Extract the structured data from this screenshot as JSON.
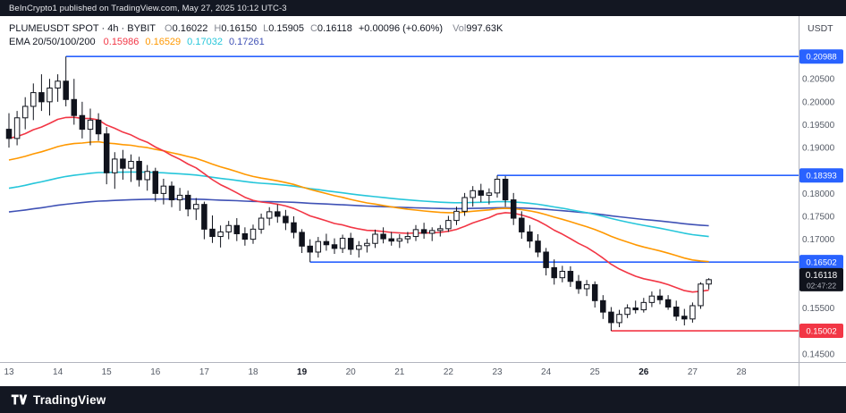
{
  "topbar": {
    "text": "BeInCrypto1 published on TradingView.com, May 27, 2025 10:12 UTC-3"
  },
  "header": {
    "title": "PLUMEUSDT SPOT · 4h · BYBIT",
    "ohlc": [
      {
        "label": "O",
        "value": "0.16022"
      },
      {
        "label": "H",
        "value": "0.16150"
      },
      {
        "label": "L",
        "value": "0.15905"
      },
      {
        "label": "C",
        "value": "0.16118"
      }
    ],
    "change": "+0.00096 (+0.60%)",
    "volume_label": "Vol",
    "volume_value": "997.63K",
    "ema_title": "EMA 20/50/100/200",
    "ema_values": [
      {
        "value": "0.15986",
        "color": "#f23645"
      },
      {
        "value": "0.16529",
        "color": "#ff9800"
      },
      {
        "value": "0.17032",
        "color": "#26c6da"
      },
      {
        "value": "0.17261",
        "color": "#3f51b5"
      }
    ]
  },
  "price_axis": {
    "currency": "USDT"
  },
  "footer": {
    "brand": "TradingView"
  },
  "chart_data": {
    "type": "candlestick",
    "symbol": "PLUMEUSDT",
    "market": "SPOT",
    "interval": "4h",
    "exchange": "BYBIT",
    "y_range": [
      0.1432,
      0.2187
    ],
    "ticks": [
      0.205,
      0.2,
      0.195,
      0.19,
      0.18,
      0.175,
      0.17,
      0.155,
      0.145
    ],
    "levels": [
      {
        "price": 0.20988,
        "from_index": 7,
        "color": "#2962ff"
      },
      {
        "price": 0.18393,
        "from_index": 60,
        "color": "#2962ff"
      },
      {
        "price": 0.16502,
        "from_index": 37,
        "color": "#2962ff"
      },
      {
        "price": 0.15002,
        "from_index": 74,
        "color": "#f23645"
      }
    ],
    "current_price": 0.16118,
    "countdown": "02:47:22",
    "emas": [
      {
        "period": 20,
        "color": "#f23645",
        "seed": 0.192
      },
      {
        "period": 50,
        "color": "#ff9800",
        "seed": 0.1871
      },
      {
        "period": 100,
        "color": "#26c6da",
        "seed": 0.1809
      },
      {
        "period": 200,
        "color": "#3f51b5",
        "seed": 0.1758
      }
    ],
    "time_labels": [
      {
        "label": "13",
        "index": 0,
        "bold": false
      },
      {
        "label": "14",
        "index": 6,
        "bold": false
      },
      {
        "label": "15",
        "index": 12,
        "bold": false
      },
      {
        "label": "16",
        "index": 18,
        "bold": false
      },
      {
        "label": "17",
        "index": 24,
        "bold": false
      },
      {
        "label": "18",
        "index": 30,
        "bold": false
      },
      {
        "label": "19",
        "index": 36,
        "bold": true
      },
      {
        "label": "20",
        "index": 42,
        "bold": false
      },
      {
        "label": "21",
        "index": 48,
        "bold": false
      },
      {
        "label": "22",
        "index": 54,
        "bold": false
      },
      {
        "label": "23",
        "index": 60,
        "bold": false
      },
      {
        "label": "24",
        "index": 66,
        "bold": false
      },
      {
        "label": "25",
        "index": 72,
        "bold": false
      },
      {
        "label": "26",
        "index": 78,
        "bold": true
      },
      {
        "label": "27",
        "index": 84,
        "bold": false
      },
      {
        "label": "28",
        "index": 90,
        "bold": false
      }
    ],
    "candles": [
      [
        0.194,
        0.1975,
        0.19,
        0.192
      ],
      [
        0.192,
        0.198,
        0.1905,
        0.1965
      ],
      [
        0.1965,
        0.201,
        0.194,
        0.199
      ],
      [
        0.199,
        0.204,
        0.196,
        0.202
      ],
      [
        0.202,
        0.206,
        0.198,
        0.2
      ],
      [
        0.2,
        0.205,
        0.197,
        0.203
      ],
      [
        0.203,
        0.206,
        0.2,
        0.2045
      ],
      [
        0.2045,
        0.20988,
        0.199,
        0.2005
      ],
      [
        0.2005,
        0.205,
        0.195,
        0.197
      ],
      [
        0.197,
        0.2,
        0.192,
        0.194
      ],
      [
        0.194,
        0.1985,
        0.1905,
        0.196
      ],
      [
        0.196,
        0.1975,
        0.1915,
        0.193
      ],
      [
        0.193,
        0.1945,
        0.182,
        0.1845
      ],
      [
        0.1845,
        0.189,
        0.181,
        0.1875
      ],
      [
        0.1875,
        0.1895,
        0.183,
        0.1855
      ],
      [
        0.1855,
        0.1885,
        0.1825,
        0.187
      ],
      [
        0.187,
        0.188,
        0.1815,
        0.183
      ],
      [
        0.183,
        0.1862,
        0.1806,
        0.1848
      ],
      [
        0.1848,
        0.1856,
        0.1782,
        0.18
      ],
      [
        0.18,
        0.1832,
        0.1776,
        0.1816
      ],
      [
        0.1816,
        0.1826,
        0.177,
        0.1786
      ],
      [
        0.1786,
        0.1812,
        0.1762,
        0.1796
      ],
      [
        0.1796,
        0.1806,
        0.175,
        0.1766
      ],
      [
        0.1766,
        0.179,
        0.1742,
        0.1776
      ],
      [
        0.1776,
        0.1782,
        0.17,
        0.1722
      ],
      [
        0.1722,
        0.1752,
        0.1692,
        0.1706
      ],
      [
        0.1706,
        0.173,
        0.1682,
        0.1716
      ],
      [
        0.1716,
        0.174,
        0.17,
        0.173
      ],
      [
        0.173,
        0.1746,
        0.1696,
        0.1712
      ],
      [
        0.1712,
        0.1726,
        0.1686,
        0.17
      ],
      [
        0.17,
        0.1732,
        0.169,
        0.1722
      ],
      [
        0.1722,
        0.1756,
        0.1712,
        0.1746
      ],
      [
        0.1746,
        0.177,
        0.173,
        0.176
      ],
      [
        0.176,
        0.1776,
        0.1736,
        0.175
      ],
      [
        0.175,
        0.1764,
        0.172,
        0.1736
      ],
      [
        0.1736,
        0.175,
        0.1702,
        0.1715
      ],
      [
        0.1715,
        0.1722,
        0.167,
        0.1685
      ],
      [
        0.1685,
        0.17,
        0.16502,
        0.1672
      ],
      [
        0.1672,
        0.1705,
        0.166,
        0.1695
      ],
      [
        0.1695,
        0.1712,
        0.1675,
        0.1688
      ],
      [
        0.1688,
        0.1702,
        0.1668,
        0.168
      ],
      [
        0.168,
        0.171,
        0.167,
        0.1702
      ],
      [
        0.1702,
        0.1714,
        0.1666,
        0.1678
      ],
      [
        0.1678,
        0.1696,
        0.166,
        0.1686
      ],
      [
        0.1686,
        0.1701,
        0.1671,
        0.1691
      ],
      [
        0.1691,
        0.1721,
        0.1681,
        0.1711
      ],
      [
        0.1711,
        0.1726,
        0.1691,
        0.1701
      ],
      [
        0.1701,
        0.1716,
        0.1686,
        0.1696
      ],
      [
        0.1696,
        0.1711,
        0.1681,
        0.1701
      ],
      [
        0.1701,
        0.1716,
        0.1691,
        0.1706
      ],
      [
        0.1706,
        0.1731,
        0.1696,
        0.1721
      ],
      [
        0.1721,
        0.1736,
        0.1701,
        0.1713
      ],
      [
        0.1713,
        0.1726,
        0.1696,
        0.1719
      ],
      [
        0.1719,
        0.1731,
        0.1706,
        0.1723
      ],
      [
        0.1723,
        0.1751,
        0.1716,
        0.1741
      ],
      [
        0.1741,
        0.1771,
        0.1731,
        0.1761
      ],
      [
        0.1761,
        0.1801,
        0.1751,
        0.1791
      ],
      [
        0.1791,
        0.1816,
        0.1771,
        0.1806
      ],
      [
        0.1806,
        0.1821,
        0.1781,
        0.1796
      ],
      [
        0.1796,
        0.1811,
        0.1776,
        0.1801
      ],
      [
        0.1801,
        0.18393,
        0.1791,
        0.1831
      ],
      [
        0.1831,
        0.1838,
        0.1771,
        0.1786
      ],
      [
        0.1786,
        0.1801,
        0.1731,
        0.1746
      ],
      [
        0.1746,
        0.1761,
        0.1701,
        0.1716
      ],
      [
        0.1716,
        0.1731,
        0.1681,
        0.1696
      ],
      [
        0.1696,
        0.1711,
        0.1661,
        0.1672
      ],
      [
        0.1672,
        0.1681,
        0.1621,
        0.1638
      ],
      [
        0.1638,
        0.1656,
        0.1601,
        0.1616
      ],
      [
        0.1616,
        0.1642,
        0.1606,
        0.163
      ],
      [
        0.163,
        0.1641,
        0.1596,
        0.1608
      ],
      [
        0.1608,
        0.1622,
        0.1581,
        0.1592
      ],
      [
        0.1592,
        0.1611,
        0.1576,
        0.1601
      ],
      [
        0.1601,
        0.1608,
        0.1551,
        0.1566
      ],
      [
        0.1566,
        0.1578,
        0.1526,
        0.1541
      ],
      [
        0.1541,
        0.1552,
        0.15002,
        0.1518
      ],
      [
        0.1518,
        0.1546,
        0.1508,
        0.1536
      ],
      [
        0.1536,
        0.1558,
        0.1528,
        0.155
      ],
      [
        0.155,
        0.1566,
        0.1538,
        0.1546
      ],
      [
        0.1546,
        0.1572,
        0.154,
        0.1562
      ],
      [
        0.1562,
        0.1586,
        0.1552,
        0.1576
      ],
      [
        0.1576,
        0.1591,
        0.1558,
        0.1568
      ],
      [
        0.1568,
        0.1578,
        0.1546,
        0.1552
      ],
      [
        0.1552,
        0.1566,
        0.1522,
        0.1532
      ],
      [
        0.1532,
        0.1548,
        0.1512,
        0.1526
      ],
      [
        0.1526,
        0.1562,
        0.1518,
        0.1555
      ],
      [
        0.1555,
        0.1606,
        0.1548,
        0.16022
      ],
      [
        0.16022,
        0.1615,
        0.15905,
        0.16118
      ]
    ]
  }
}
